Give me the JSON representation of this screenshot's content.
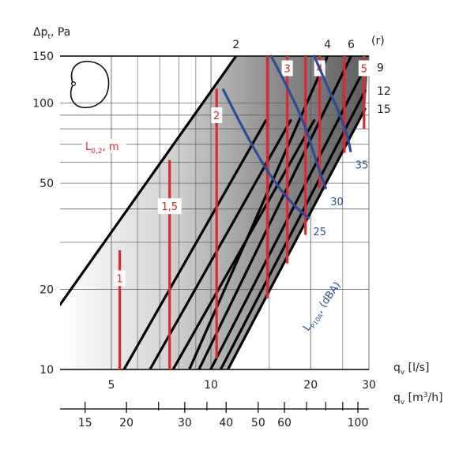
{
  "chart_data": {
    "type": "line",
    "title": "",
    "ylabel": "Δp",
    "ylabel_sub": "t",
    "ylabel_unit": ", Pa",
    "x_primary": {
      "label": "q",
      "label_sub": "v",
      "label_unit": " [l/s]",
      "range": [
        3.5,
        30
      ],
      "scale": "log",
      "ticks": [
        5,
        10,
        20,
        30
      ],
      "tick_labels": [
        "5",
        "10",
        "20",
        "30"
      ]
    },
    "x_secondary": {
      "label": "q",
      "label_sub": "v",
      "label_unit": " [m",
      "label_sup": "3",
      "label_tail": "/h]",
      "ticks": [
        15,
        20,
        30,
        40,
        50,
        60,
        100
      ],
      "tick_labels": [
        "15",
        "20",
        "30",
        "40",
        "50",
        "60",
        "100"
      ],
      "minor_ticks": [
        25,
        35,
        70,
        80,
        90
      ]
    },
    "y": {
      "range": [
        10,
        150
      ],
      "scale": "log",
      "ticks": [
        10,
        20,
        50,
        100,
        150
      ],
      "tick_labels": [
        "10",
        "20",
        "50",
        "100",
        "150"
      ]
    },
    "grid": true,
    "r_label": "(r)",
    "r_lines": [
      {
        "name": "2",
        "start": [
          3.5,
          17.5
        ],
        "end": [
          11.9,
          150
        ]
      },
      {
        "name": "",
        "start": [
          5.46,
          10
        ],
        "end": [
          14.65,
          86
        ]
      },
      {
        "name": "",
        "start": [
          6.54,
          10
        ],
        "end": [
          17.4,
          86
        ]
      },
      {
        "name": "",
        "start": [
          7.68,
          10
        ],
        "end": [
          20.5,
          86
        ]
      },
      {
        "name": "4",
        "start": [
          8.6,
          10
        ],
        "end": [
          22.5,
          150
        ]
      },
      {
        "name": "6",
        "start": [
          9.2,
          10
        ],
        "end": [
          26.5,
          150
        ]
      },
      {
        "name": "9",
        "start": [
          9.98,
          10
        ],
        "end": [
          29.2,
          136
        ]
      },
      {
        "name": "12",
        "start": [
          10.7,
          10
        ],
        "end": [
          29.2,
          111
        ]
      },
      {
        "name": "15",
        "start": [
          11.25,
          10
        ],
        "end": [
          29.2,
          95
        ]
      }
    ],
    "throw_label": "L",
    "throw_label_sub": "0,2",
    "throw_label_unit": ", m",
    "throw_lines": [
      {
        "name": "1",
        "q": 5.3,
        "dp_range": [
          10,
          28
        ],
        "label_dp": 22
      },
      {
        "name": "1,5",
        "q": 7.5,
        "dp_range": [
          10,
          61
        ],
        "label_dp": 41
      },
      {
        "name": "2",
        "q": 10.4,
        "dp_range": [
          11,
          113
        ],
        "label_dp": 90
      },
      {
        "name": "",
        "q": 14.8,
        "dp_range": [
          18.5,
          150
        ]
      },
      {
        "name": "3",
        "q": 17.0,
        "dp_range": [
          25,
          150
        ],
        "label_dp": 135
      },
      {
        "name": "",
        "q": 19.3,
        "dp_range": [
          32,
          150
        ]
      },
      {
        "name": "4",
        "q": 21.3,
        "dp_range": [
          48,
          150
        ],
        "label_dp": 135
      },
      {
        "name": "",
        "q": 25.3,
        "dp_range": [
          65,
          150
        ]
      },
      {
        "name": "5",
        "q": 29.0,
        "dp_range": [
          80,
          150
        ],
        "label_dp": 135
      }
    ],
    "noise_label": "L",
    "noise_label_sub": "P10A",
    "noise_label_unit": ", (dBA)",
    "noise_curves": [
      {
        "name": "25",
        "points": [
          [
            10.9,
            112
          ],
          [
            12.5,
            80
          ],
          [
            14.8,
            55
          ],
          [
            17.5,
            42
          ],
          [
            19.7,
            37
          ]
        ]
      },
      {
        "name": "30",
        "points": [
          [
            15.2,
            150
          ],
          [
            17.0,
            115
          ],
          [
            19.3,
            82
          ],
          [
            20.9,
            59
          ],
          [
            22.2,
            48
          ]
        ]
      },
      {
        "name": "35",
        "points": [
          [
            20.5,
            150
          ],
          [
            22.5,
            115
          ],
          [
            24.6,
            90
          ],
          [
            26.0,
            73
          ],
          [
            26.4,
            66
          ]
        ]
      }
    ],
    "icon": "diffuser-outline-icon"
  }
}
